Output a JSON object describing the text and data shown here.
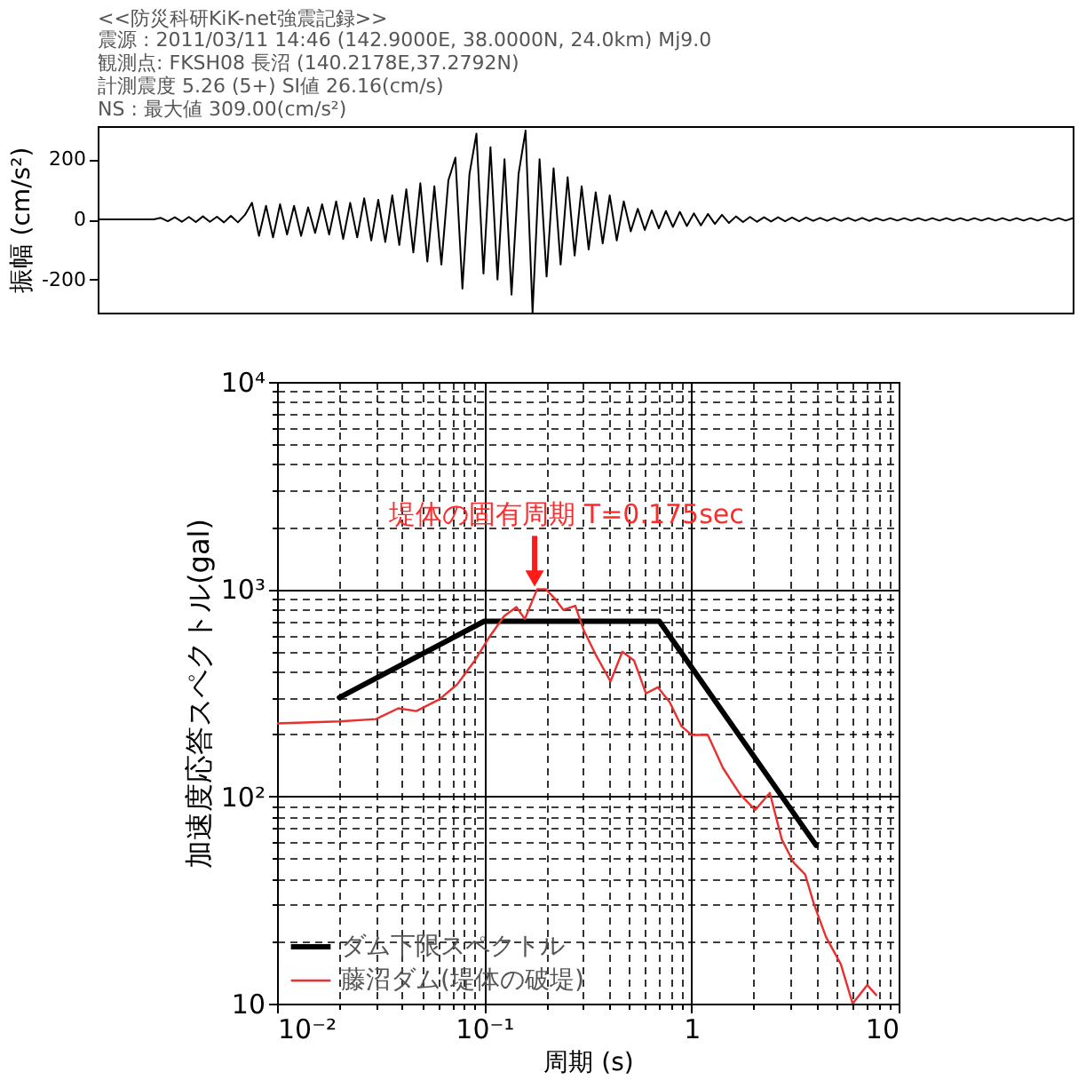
{
  "chart_data": [
    {
      "type": "line",
      "title": "<<防災科研KiK-net強震記録>>",
      "annotations": [
        "震源 : 2011/03/11 14:46 (142.9000E, 38.0000N, 24.0km) Mj9.0",
        "観測点: FKSH08 長沼 (140.2178E,37.2792N)",
        "計測震度 5.26 (5+)  SI値 26.16(cm/s)",
        "NS : 最大値  309.00(cm/s²)"
      ],
      "ylabel": "振幅 (cm/s²)",
      "ylim": [
        -310,
        310
      ],
      "yticks": [
        -200,
        0,
        200
      ],
      "tick_labels": "y",
      "color": "#000000",
      "categories": [
        null,
        null,
        null,
        null,
        null,
        null,
        null,
        null,
        null,
        null,
        null,
        null,
        null,
        null,
        null,
        null,
        null,
        null,
        null,
        null,
        null,
        null,
        null,
        null,
        null,
        null,
        null,
        null,
        null,
        null,
        null,
        null,
        null,
        null,
        null,
        null,
        null,
        null,
        null,
        null,
        null,
        null,
        null,
        null,
        null,
        null,
        null,
        null,
        null,
        null,
        null,
        null,
        null,
        null,
        null,
        null,
        null,
        null,
        null,
        null,
        null,
        null,
        null,
        null,
        null,
        null,
        null,
        null,
        null,
        null,
        null,
        null,
        null,
        null,
        null,
        null,
        null,
        null,
        null,
        null,
        null,
        null,
        null,
        null,
        null,
        null,
        null,
        null,
        null,
        null,
        null,
        null,
        null,
        null,
        null,
        null,
        null,
        null,
        null,
        null,
        null,
        null,
        null,
        null,
        null,
        null,
        null,
        null,
        null,
        null,
        null,
        null,
        null,
        null,
        null,
        null,
        null,
        null,
        null,
        null,
        null,
        null,
        null,
        null,
        null,
        null,
        null,
        null,
        null,
        null,
        null,
        null,
        null,
        null,
        null,
        null,
        null,
        null,
        null,
        null
      ],
      "values": [
        0,
        0,
        0,
        0,
        0,
        0,
        0,
        0,
        0,
        5,
        -6,
        7,
        -8,
        8,
        -9,
        10,
        -8,
        9,
        -10,
        12,
        -10,
        15,
        55,
        -55,
        45,
        -60,
        50,
        -50,
        45,
        -55,
        40,
        -45,
        50,
        -50,
        60,
        -65,
        55,
        -60,
        70,
        -70,
        65,
        -75,
        80,
        -85,
        100,
        -110,
        120,
        -140,
        110,
        -150,
        130,
        205,
        -230,
        150,
        285,
        -180,
        240,
        -200,
        200,
        -250,
        150,
        295,
        -309,
        200,
        -190,
        170,
        -150,
        140,
        -120,
        110,
        -100,
        90,
        -80,
        80,
        -70,
        60,
        -40,
        35,
        -35,
        30,
        -30,
        28,
        -25,
        25,
        -22,
        20,
        -20,
        18,
        -15,
        15,
        -12,
        10,
        -9,
        8,
        -8,
        7,
        -7,
        7,
        -6,
        6,
        -6,
        6,
        -5,
        5,
        -5,
        5,
        -5,
        5,
        -5,
        5,
        -5,
        4,
        -4,
        4,
        -4,
        4,
        -4,
        4,
        -4,
        4,
        -4,
        4,
        -4,
        4,
        -4,
        4,
        -4,
        4,
        -4,
        4,
        -4,
        4,
        -4,
        4,
        -4,
        4,
        -4,
        4,
        -4,
        4
      ]
    },
    {
      "type": "line",
      "xlabel": "周期 (s)",
      "ylabel": "加速度応答スペクトル(gal)",
      "log": "xy",
      "grid": true,
      "legend": "bottom left",
      "xlim": [
        0.01,
        10
      ],
      "ylim": [
        10,
        10000
      ],
      "xticks": [
        {
          "value": 0.01,
          "label": "10⁻²"
        },
        {
          "value": 0.02,
          "label": null
        },
        {
          "value": 0.03,
          "label": null
        },
        {
          "value": 0.04,
          "label": null
        },
        {
          "value": 0.05,
          "label": null
        },
        {
          "value": 0.06,
          "label": null
        },
        {
          "value": 0.07,
          "label": null
        },
        {
          "value": 0.08,
          "label": null
        },
        {
          "value": 0.09,
          "label": null
        },
        {
          "value": 0.1,
          "label": "10⁻¹"
        },
        {
          "value": 0.2,
          "label": null
        },
        {
          "value": 0.3,
          "label": null
        },
        {
          "value": 0.4,
          "label": null
        },
        {
          "value": 0.5,
          "label": null
        },
        {
          "value": 0.6,
          "label": null
        },
        {
          "value": 0.7,
          "label": null
        },
        {
          "value": 0.8,
          "label": null
        },
        {
          "value": 0.9,
          "label": null
        },
        1,
        {
          "value": 2,
          "label": null
        },
        {
          "value": 3,
          "label": null
        },
        {
          "value": 4,
          "label": null
        },
        {
          "value": 5,
          "label": null
        },
        {
          "value": 6,
          "label": null
        },
        {
          "value": 7,
          "label": null
        },
        {
          "value": 8,
          "label": null
        },
        {
          "value": 9,
          "label": null
        },
        10
      ],
      "yticks": [
        10,
        {
          "value": 20,
          "label": null
        },
        {
          "value": 30,
          "label": null
        },
        {
          "value": 40,
          "label": null
        },
        {
          "value": 50,
          "label": null
        },
        {
          "value": 60,
          "label": null
        },
        {
          "value": 70,
          "label": null
        },
        {
          "value": 80,
          "label": null
        },
        {
          "value": 90,
          "label": null
        },
        {
          "value": 100,
          "label": "10²"
        },
        {
          "value": 200,
          "label": null
        },
        {
          "value": 300,
          "label": null
        },
        {
          "value": 400,
          "label": null
        },
        {
          "value": 500,
          "label": null
        },
        {
          "value": 600,
          "label": null
        },
        {
          "value": 700,
          "label": null
        },
        {
          "value": 800,
          "label": null
        },
        {
          "value": 900,
          "label": null
        },
        {
          "value": 1000,
          "label": "10³"
        },
        {
          "value": 2000,
          "label": null
        },
        {
          "value": 3000,
          "label": null
        },
        {
          "value": 4000,
          "label": null
        },
        {
          "value": 5000,
          "label": null
        },
        {
          "value": 6000,
          "label": null
        },
        {
          "value": 7000,
          "label": null
        },
        {
          "value": 8000,
          "label": null
        },
        {
          "value": 9000,
          "label": null
        },
        {
          "value": 10000,
          "label": "10⁴"
        }
      ],
      "series": [
        {
          "name": "ダム下限スペクトル",
          "color": "#000000",
          "x": [
            0.02,
            0.1,
            0.7,
            4
          ],
          "values": [
            300,
            700,
            700,
            58
          ]
        },
        {
          "name": "藤沼ダム(堤体の破堤)",
          "color": "#e8302e",
          "x": [
            0.01,
            0.02,
            0.03,
            0.0385,
            0.047,
            0.0608,
            0.074,
            0.09,
            0.106,
            0.125,
            0.143,
            0.157,
            0.18,
            0.198,
            0.218,
            0.241,
            0.275,
            0.303,
            0.345,
            0.407,
            0.464,
            0.529,
            0.603,
            0.688,
            0.785,
            0.895,
            1,
            1.2,
            1.42,
            1.72,
            2.03,
            2.39,
            2.73,
            3.11,
            3.54,
            3.91,
            4.46,
            5.26,
            6,
            7.06,
            7.8
          ],
          "values": [
            225,
            230,
            236,
            266,
            258,
            294,
            347,
            452,
            589,
            743,
            820,
            718,
            1000,
            1000,
            906,
            794,
            831,
            629,
            483,
            359,
            499,
            452,
            314,
            336,
            285,
            218,
            198,
            198,
            137,
            102,
            86,
            104,
            62,
            48,
            42,
            30,
            21,
            15.5,
            10,
            12.3,
            11
          ]
        }
      ],
      "annotations": [
        {
          "text": "堤体の固有周期 T=0.175sec",
          "x": 0.175,
          "y": 1000
        }
      ]
    }
  ]
}
